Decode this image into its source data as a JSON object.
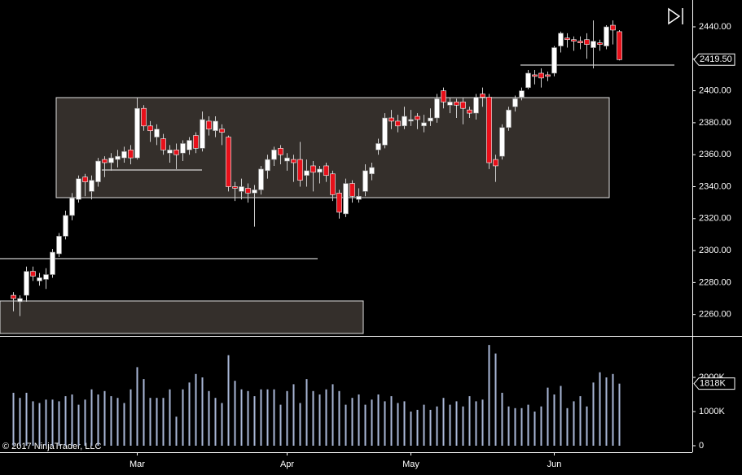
{
  "chart_data": {
    "type": "candlestick",
    "watermark": "© 2017 NinjaTrader, LLC",
    "categories": [
      null,
      null,
      null,
      null,
      null,
      null,
      null,
      null,
      null,
      null,
      null,
      null,
      null,
      null,
      null,
      null,
      null,
      null,
      null,
      "Mar",
      null,
      null,
      null,
      null,
      null,
      null,
      null,
      null,
      null,
      null,
      null,
      null,
      null,
      null,
      null,
      null,
      null,
      null,
      null,
      null,
      null,
      null,
      "Apr",
      null,
      null,
      null,
      null,
      null,
      null,
      null,
      null,
      null,
      null,
      null,
      null,
      null,
      null,
      null,
      null,
      null,
      null,
      "May",
      null,
      null,
      null,
      null,
      null,
      null,
      null,
      null,
      null,
      null,
      null,
      null,
      null,
      null,
      null,
      null,
      null,
      null,
      null,
      null,
      null,
      "Jun",
      null,
      null,
      null,
      null,
      null,
      null,
      null,
      null,
      null,
      null
    ],
    "open": [
      2272,
      2268,
      2272,
      2287,
      2281,
      2282,
      2285,
      2298,
      2309,
      2322,
      2332,
      2346,
      2337,
      2343,
      2357,
      2355,
      2357,
      2358,
      2363,
      2358,
      2389,
      2378,
      2371,
      2370,
      2361,
      2363,
      2361,
      2363,
      2372,
      2364,
      2381,
      2375,
      2376,
      2371,
      2340,
      2337,
      2339,
      2336,
      2338,
      2350,
      2357,
      2364,
      2356,
      2357,
      2357,
      2347,
      2353,
      2349,
      2353,
      2348,
      2336,
      2323,
      2342,
      2332,
      2337,
      2348,
      2363,
      2366,
      2383,
      2381,
      2378,
      2381,
      2384,
      2378,
      2381,
      2383,
      2400,
      2391,
      2393,
      2393,
      2388,
      2386,
      2398,
      2396,
      2357,
      2359,
      2377,
      2390,
      2396,
      2402,
      2410,
      2411,
      2410,
      2411,
      2428,
      2433,
      2432,
      2431,
      2432,
      2427,
      2430,
      2428,
      2441,
      2437
    ],
    "high": [
      2274,
      2272,
      2290,
      2290,
      2286,
      2289,
      2301,
      2311,
      2325,
      2336,
      2347,
      2348,
      2347,
      2358,
      2359,
      2361,
      2363,
      2365,
      2366,
      2396,
      2391,
      2381,
      2379,
      2373,
      2366,
      2367,
      2369,
      2371,
      2374,
      2387,
      2384,
      2384,
      2379,
      2372,
      2343,
      2345,
      2342,
      2341,
      2353,
      2360,
      2365,
      2366,
      2361,
      2360,
      2368,
      2357,
      2356,
      2353,
      2355,
      2350,
      2338,
      2345,
      2344,
      2339,
      2354,
      2355,
      2370,
      2386,
      2388,
      2385,
      2390,
      2388,
      2386,
      2385,
      2389,
      2398,
      2402,
      2396,
      2395,
      2396,
      2390,
      2398,
      2402,
      2398,
      2360,
      2379,
      2390,
      2397,
      2402,
      2413,
      2413,
      2414,
      2412,
      2428,
      2437,
      2436,
      2434,
      2434,
      2436,
      2444,
      2432,
      2441,
      2444,
      2438
    ],
    "low": [
      2262,
      2259,
      2268,
      2281,
      2278,
      2276,
      2283,
      2296,
      2307,
      2319,
      2330,
      2334,
      2332,
      2340,
      2346,
      2350,
      2352,
      2355,
      2354,
      2357,
      2375,
      2368,
      2366,
      2360,
      2355,
      2351,
      2356,
      2360,
      2361,
      2362,
      2372,
      2371,
      2366,
      2337,
      2331,
      2332,
      2330,
      2315,
      2335,
      2345,
      2353,
      2354,
      2350,
      2343,
      2340,
      2340,
      2337,
      2342,
      2343,
      2331,
      2320,
      2321,
      2330,
      2330,
      2334,
      2344,
      2360,
      2364,
      2376,
      2374,
      2376,
      2378,
      2376,
      2374,
      2378,
      2380,
      2389,
      2386,
      2383,
      2379,
      2383,
      2382,
      2390,
      2351,
      2343,
      2357,
      2375,
      2387,
      2394,
      2401,
      2404,
      2402,
      2406,
      2409,
      2424,
      2427,
      2425,
      2426,
      2420,
      2414,
      2425,
      2426,
      2429,
      2419
    ],
    "close": [
      2270,
      2270,
      2287,
      2284,
      2283,
      2285,
      2299,
      2309,
      2322,
      2333,
      2345,
      2343,
      2344,
      2356,
      2355,
      2358,
      2359,
      2362,
      2358,
      2389,
      2378,
      2375,
      2376,
      2363,
      2363,
      2360,
      2367,
      2369,
      2364,
      2382,
      2376,
      2381,
      2374,
      2340,
      2339,
      2340,
      2336,
      2338,
      2351,
      2357,
      2363,
      2360,
      2358,
      2355,
      2344,
      2350,
      2349,
      2351,
      2347,
      2335,
      2324,
      2342,
      2334,
      2334,
      2350,
      2352,
      2367,
      2383,
      2381,
      2378,
      2384,
      2382,
      2382,
      2380,
      2383,
      2395,
      2393,
      2393,
      2391,
      2389,
      2386,
      2396,
      2396,
      2355,
      2353,
      2377,
      2388,
      2395,
      2400,
      2411,
      2409,
      2408,
      2409,
      2427,
      2436,
      2432,
      2431,
      2430,
      2429,
      2431,
      2429,
      2440,
      2438,
      2419.5
    ],
    "volume": [
      1550,
      1400,
      1550,
      1300,
      1250,
      1350,
      1350,
      1300,
      1450,
      1500,
      1200,
      1350,
      1650,
      1500,
      1600,
      1450,
      1400,
      1250,
      1650,
      2300,
      1950,
      1400,
      1400,
      1400,
      1650,
      850,
      1650,
      1850,
      2100,
      2000,
      1600,
      1400,
      1250,
      2650,
      1900,
      1650,
      1600,
      1450,
      1650,
      1650,
      1650,
      1200,
      1600,
      1800,
      1250,
      1950,
      1600,
      1500,
      1650,
      1800,
      1600,
      1200,
      1400,
      1500,
      1200,
      1350,
      1500,
      1300,
      1450,
      1250,
      1300,
      1000,
      1050,
      1200,
      1050,
      1150,
      1400,
      1200,
      1300,
      1150,
      1450,
      1300,
      1350,
      2950,
      2700,
      1550,
      1150,
      1100,
      1100,
      1200,
      1000,
      1150,
      1700,
      1500,
      1750,
      1100,
      1300,
      1450,
      1150,
      1850,
      2150,
      2000,
      2100,
      1818
    ],
    "up_color": "#ffffff",
    "down_color": "#e8101a",
    "volume_color": "#aab8d8",
    "ylim": [
      2246.6,
      2456.8
    ],
    "yticks": [
      {
        "value": 2260,
        "label": "2260.00"
      },
      {
        "value": 2280,
        "label": "2280.00"
      },
      {
        "value": 2300,
        "label": "2300.00"
      },
      {
        "value": 2320,
        "label": "2320.00"
      },
      {
        "value": 2340,
        "label": "2340.00"
      },
      {
        "value": 2360,
        "label": "2360.00"
      },
      {
        "value": 2380,
        "label": "2380.00"
      },
      {
        "value": 2400,
        "label": "2400.00"
      },
      {
        "value": 2420,
        "label": "2420.00"
      },
      {
        "value": 2440,
        "label": "2440.00"
      }
    ],
    "current_price": {
      "value": 2419.5,
      "label": "2419.50"
    },
    "volume_ylim": [
      0,
      3167
    ],
    "volume_ticks": [
      0,
      {
        "value": 1000,
        "label": "1000K"
      },
      {
        "value": 2000,
        "label": "2000K"
      }
    ],
    "current_volume": {
      "value": 1818,
      "label": "1818K"
    }
  }
}
